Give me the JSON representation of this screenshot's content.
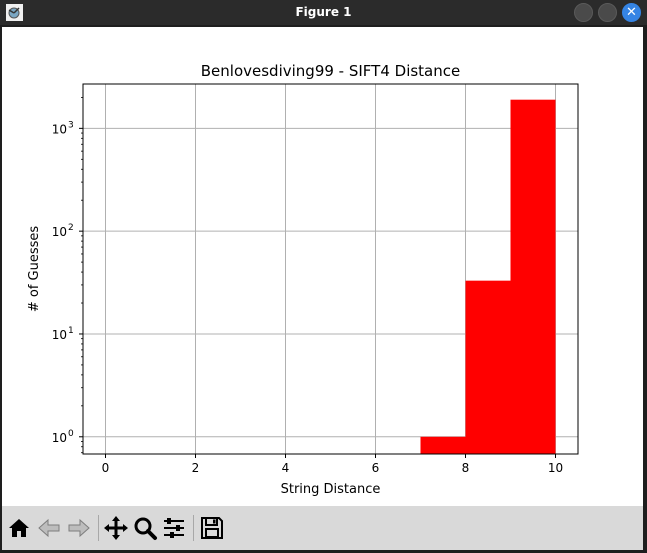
{
  "window": {
    "title": "Figure 1"
  },
  "toolbar": {
    "buttons": [
      "home-icon",
      "back-arrow-icon",
      "forward-arrow-icon",
      "pan-move-icon",
      "zoom-magnifier-icon",
      "configure-subplots-icon",
      "save-floppy-icon"
    ]
  },
  "colors": {
    "bar": "#ff0000",
    "grid": "#b0b0b0",
    "titlebar": "#2b2b2b",
    "toolbar": "#d9d9d9",
    "close_button": "#3584e4"
  },
  "chart_data": {
    "type": "bar",
    "title": "Benlovesdiving99 - SIFT4 Distance",
    "xlabel": "String Distance",
    "ylabel": "# of Guesses",
    "yscale": "log",
    "grid": true,
    "xlim": [
      -0.5,
      10.5
    ],
    "ylim": [
      0.68,
      2700
    ],
    "xticks": [
      0,
      2,
      4,
      6,
      8,
      10
    ],
    "yticks": [
      {
        "value": 1,
        "base": "10",
        "exp": "0"
      },
      {
        "value": 10,
        "base": "10",
        "exp": "1"
      },
      {
        "value": 100,
        "base": "10",
        "exp": "2"
      },
      {
        "value": 1000,
        "base": "10",
        "exp": "3"
      }
    ],
    "bins": [
      {
        "x0": 7,
        "x1": 8,
        "count": 1
      },
      {
        "x0": 8,
        "x1": 9,
        "count": 33
      },
      {
        "x0": 9,
        "x1": 10,
        "count": 1900
      }
    ]
  }
}
